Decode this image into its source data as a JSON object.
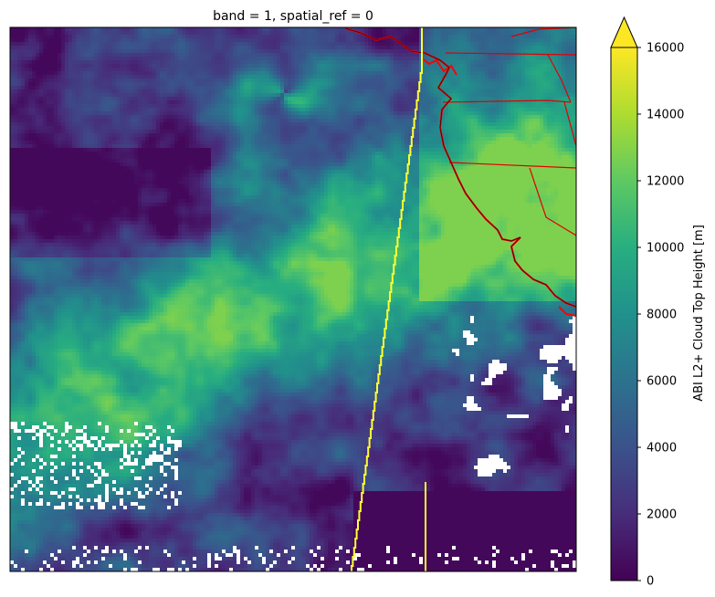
{
  "chart_data": {
    "type": "heatmap",
    "title": "band = 1, spatial_ref = 0",
    "xlabel": "",
    "ylabel": "",
    "colormap": "viridis",
    "colorbar": {
      "label": "ABI L2+ Cloud Top Height [m]",
      "vmin": 0,
      "vmax": 16000,
      "extend": "max",
      "ticks": [
        0,
        2000,
        4000,
        6000,
        8000,
        10000,
        12000,
        14000,
        16000
      ]
    },
    "missing_value_color": "#ffffff",
    "overlays": [
      {
        "name": "coastlines",
        "color": "#ff0000"
      },
      {
        "name": "state borders",
        "color": "#ff0000"
      },
      {
        "name": "boundary line",
        "color": "#ffff00"
      }
    ]
  }
}
